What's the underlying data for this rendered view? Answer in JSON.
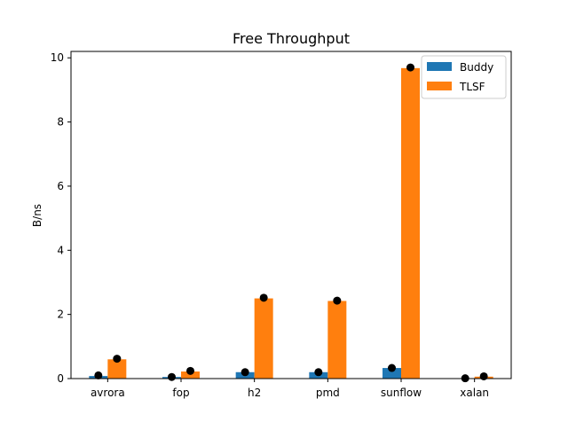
{
  "chart_data": {
    "type": "bar",
    "title": "Free Throughput",
    "xlabel": "",
    "ylabel": "B/ns",
    "categories": [
      "avrora",
      "fop",
      "h2",
      "pmd",
      "sunflow",
      "xalan"
    ],
    "series": [
      {
        "name": "Buddy",
        "color": "#1f77b4",
        "values": [
          0.08,
          0.05,
          0.2,
          0.2,
          0.33,
          0.01
        ]
      },
      {
        "name": "TLSF",
        "color": "#ff7f0e",
        "values": [
          0.6,
          0.22,
          2.5,
          2.42,
          9.68,
          0.06
        ]
      }
    ],
    "markers": {
      "color": "#000000",
      "values": [
        [
          0.1,
          0.05,
          0.2,
          0.2,
          0.33,
          0.01
        ],
        [
          0.62,
          0.24,
          2.52,
          2.43,
          9.7,
          0.07
        ]
      ]
    },
    "ylim": [
      0,
      10.2
    ],
    "yticks": [
      0,
      2,
      4,
      6,
      8,
      10
    ],
    "ytick_labels": [
      "0",
      "2",
      "4",
      "6",
      "8",
      "10"
    ],
    "grid": false,
    "legend": "top-right"
  }
}
